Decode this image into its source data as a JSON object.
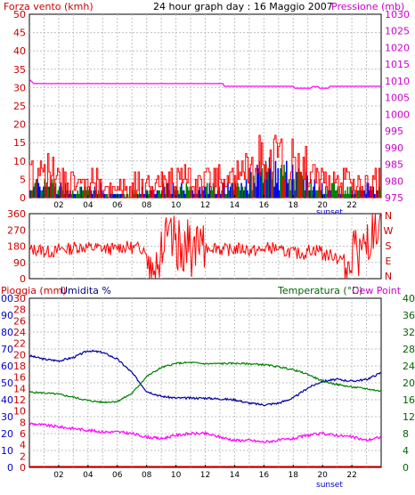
{
  "header": {
    "left_label": "Forza vento (kmh)",
    "center_label": "24 hour graph day : 16 Maggio 2007",
    "right_label": "Pressione (mb)"
  },
  "colors": {
    "frame": "#000000",
    "grid": "#c0c0c0",
    "wind_gust": "#ff0000",
    "wind_avg": "#0000ff",
    "wind_low": "#008000",
    "pressure": "#ff00ff",
    "direction": "#ff0000",
    "rain": "#ff0000",
    "humidity": "#0000a0",
    "temperature": "#008000",
    "dew_point": "#ff00ff"
  },
  "x_ticks": [
    "02",
    "04",
    "06",
    "08",
    "10",
    "12",
    "14",
    "16",
    "18",
    "20",
    "22"
  ],
  "sunset_label": "sunset",
  "panel_direction": {
    "left_ticks": [
      "360",
      "270",
      "180",
      "90",
      "0"
    ],
    "right_labels": [
      "N",
      "W",
      "S",
      "E",
      "N"
    ]
  },
  "panel_bottom_header": {
    "rain_label": "Pioggia (mm)",
    "humidity_label": "Umidita %",
    "temp_label": "Temperatura (°C)",
    "dew_label": "Dew Point"
  },
  "chart_data": [
    {
      "type": "bar",
      "panel": "wind_pressure",
      "left_axis": {
        "ylim": [
          0,
          50
        ],
        "ticks": [
          0,
          5,
          10,
          15,
          20,
          25,
          30,
          35,
          40,
          45,
          50
        ]
      },
      "right_axis": {
        "ylim": [
          975,
          1030
        ],
        "ticks": [
          975,
          980,
          985,
          990,
          995,
          1000,
          1005,
          1010,
          1015,
          1020,
          1025,
          1030
        ]
      },
      "x_hours": [
        0,
        24
      ],
      "series": [
        {
          "name": "Forza vento",
          "kind": "gust",
          "values_by_hour": [
            12,
            10,
            9,
            6,
            7,
            3,
            4,
            6,
            6,
            7,
            8,
            7,
            8,
            7,
            10,
            14,
            15,
            14,
            13,
            8,
            7,
            7,
            6,
            7
          ]
        },
        {
          "name": "Forza vento",
          "kind": "average",
          "values_by_hour": [
            4,
            4,
            3,
            2,
            3,
            1,
            1,
            2,
            2,
            3,
            3,
            2,
            3,
            3,
            4,
            7,
            8,
            7,
            6,
            4,
            3,
            3,
            2,
            3
          ]
        },
        {
          "name": "Pressione",
          "points": [
            [
              0,
              1010.5
            ],
            [
              0.3,
              1009.2
            ],
            [
              13.2,
              1009.2
            ],
            [
              13.3,
              1008.4
            ],
            [
              18,
              1008.4
            ],
            [
              18.1,
              1007.8
            ],
            [
              19.2,
              1007.8
            ],
            [
              19.3,
              1008.3
            ],
            [
              19.7,
              1008.3
            ],
            [
              19.8,
              1007.8
            ],
            [
              20.4,
              1007.8
            ],
            [
              20.5,
              1008.4
            ],
            [
              24,
              1008.4
            ]
          ]
        }
      ]
    },
    {
      "type": "line",
      "panel": "wind_direction",
      "ylim": [
        0,
        360
      ],
      "series": [
        {
          "name": "Direzione vento",
          "values_by_hour": [
            160,
            150,
            165,
            175,
            170,
            165,
            175,
            170,
            110,
            200,
            180,
            150,
            175,
            160,
            165,
            155,
            170,
            150,
            140,
            160,
            130,
            110,
            150,
            220
          ]
        }
      ]
    },
    {
      "type": "line",
      "panel": "rain_humidity_temperature",
      "rain_axis": {
        "ylim": [
          0,
          30
        ],
        "ticks": [
          0,
          2,
          4,
          6,
          8,
          10,
          12,
          14,
          16,
          18,
          20,
          22,
          24,
          26,
          28,
          30
        ]
      },
      "humidity_axis": {
        "ylim": [
          0,
          100
        ],
        "ticks": [
          0,
          10,
          20,
          30,
          40,
          50,
          60,
          70,
          80,
          90,
          100
        ]
      },
      "temp_axis": {
        "ylim": [
          0,
          40
        ],
        "ticks": [
          0,
          4,
          8,
          12,
          16,
          20,
          24,
          28,
          32,
          36,
          40
        ]
      },
      "series": [
        {
          "name": "Umidita %",
          "points": [
            [
              0,
              66
            ],
            [
              1,
              64
            ],
            [
              2,
              63
            ],
            [
              3,
              65
            ],
            [
              4,
              69
            ],
            [
              5,
              68
            ],
            [
              6,
              64
            ],
            [
              7,
              56
            ],
            [
              8,
              45
            ],
            [
              9,
              42
            ],
            [
              10,
              41
            ],
            [
              12,
              41
            ],
            [
              14,
              40
            ],
            [
              15,
              38
            ],
            [
              16,
              37
            ],
            [
              17,
              38
            ],
            [
              18,
              41
            ],
            [
              19,
              47
            ],
            [
              20,
              51
            ],
            [
              21,
              52
            ],
            [
              22,
              51
            ],
            [
              23,
              52
            ],
            [
              24,
              56
            ]
          ]
        },
        {
          "name": "Temperatura (°C)",
          "points": [
            [
              0,
              17.8
            ],
            [
              1,
              17.6
            ],
            [
              2,
              17.3
            ],
            [
              3,
              16.6
            ],
            [
              4,
              15.8
            ],
            [
              5,
              15.4
            ],
            [
              6,
              15.6
            ],
            [
              7,
              17.5
            ],
            [
              8,
              21.5
            ],
            [
              9,
              23.6
            ],
            [
              10,
              24.6
            ],
            [
              11,
              24.8
            ],
            [
              12,
              24.5
            ],
            [
              14,
              24.6
            ],
            [
              15,
              24.5
            ],
            [
              16,
              24.3
            ],
            [
              17,
              23.8
            ],
            [
              18,
              23.1
            ],
            [
              19,
              22
            ],
            [
              20,
              20.4
            ],
            [
              21,
              19.6
            ],
            [
              22,
              19
            ],
            [
              23,
              18.6
            ],
            [
              24,
              18
            ]
          ]
        },
        {
          "name": "Dew Point",
          "points": [
            [
              0,
              26
            ],
            [
              1,
              25
            ],
            [
              2,
              24
            ],
            [
              3,
              23
            ],
            [
              4,
              22
            ],
            [
              5,
              21
            ],
            [
              6,
              21
            ],
            [
              7,
              20
            ],
            [
              8,
              18
            ],
            [
              9,
              17
            ],
            [
              10,
              19
            ],
            [
              11,
              20
            ],
            [
              12,
              20
            ],
            [
              13,
              18
            ],
            [
              14,
              16
            ],
            [
              15,
              16
            ],
            [
              16,
              15
            ],
            [
              17,
              16
            ],
            [
              18,
              17
            ],
            [
              19,
              19
            ],
            [
              20,
              20
            ],
            [
              21,
              19
            ],
            [
              22,
              18
            ],
            [
              23,
              16
            ],
            [
              24,
              18
            ]
          ]
        },
        {
          "name": "Pioggia (mm)",
          "points": [
            [
              0,
              0
            ],
            [
              24,
              0
            ]
          ]
        }
      ]
    }
  ]
}
